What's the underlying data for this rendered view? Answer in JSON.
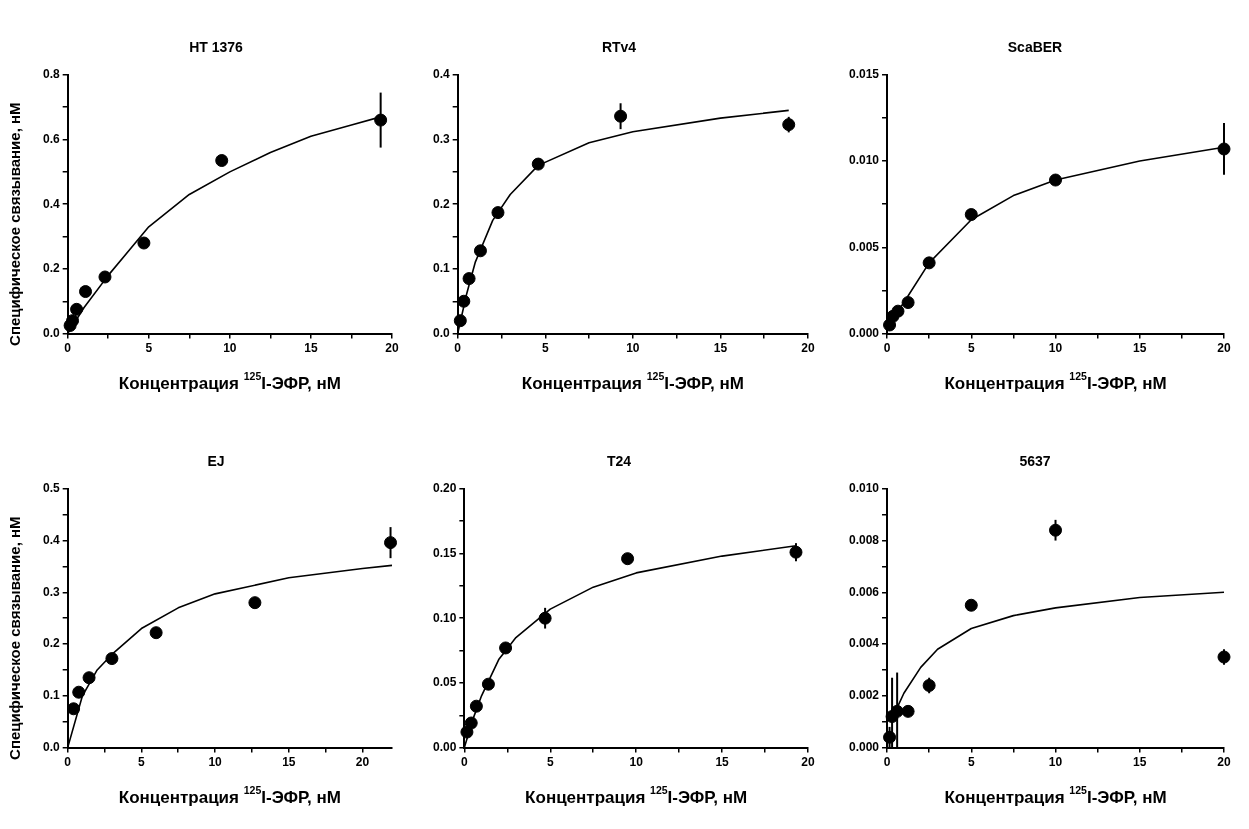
{
  "chart_data": [
    {
      "type": "scatter",
      "title": "HT 1376",
      "xlabel": "Концентрация $^{125}$I-ЭФР, нМ",
      "ylabel": "Специфическое связывание, нМ",
      "xlim": [
        0,
        20
      ],
      "ylim": [
        0,
        0.8
      ],
      "xticks": [
        0,
        {
          "value": 2.5,
          "label": null
        },
        5,
        {
          "value": 7.5,
          "label": null
        },
        10,
        {
          "value": 12.5,
          "label": null
        },
        15,
        {
          "value": 17.5,
          "label": null
        },
        20
      ],
      "yticks": [
        {
          "value": 0,
          "label": "0.0"
        },
        {
          "value": 0.1,
          "label": null
        },
        0.2,
        {
          "value": 0.3,
          "label": null
        },
        0.4,
        {
          "value": 0.5,
          "label": null
        },
        0.6,
        {
          "value": 0.7,
          "label": null
        },
        0.8
      ],
      "grid": false,
      "legend": false,
      "marker": "circle",
      "series": [
        {
          "color": "#000000",
          "x": [
            0.15,
            0.3,
            0.55,
            1.1,
            2.3,
            4.7,
            9.5,
            19.3
          ],
          "values": [
            0.025,
            0.04,
            0.075,
            0.13,
            0.175,
            0.28,
            0.535,
            0.66
          ],
          "errors": [
            null,
            null,
            null,
            null,
            null,
            null,
            null,
            0.085
          ]
        },
        {
          "type": "line",
          "color": "#000000",
          "marker": "none",
          "line_style": "solid",
          "x": [
            0,
            1,
            2.5,
            5,
            7.5,
            10,
            12.5,
            15,
            17.5,
            19.3
          ],
          "values": [
            0,
            0.08,
            0.18,
            0.33,
            0.43,
            0.5,
            0.56,
            0.61,
            0.645,
            0.67
          ]
        }
      ]
    },
    {
      "type": "scatter",
      "title": "RTv4",
      "xlabel": "Концентрация $^{125}$I-ЭФР, нМ",
      "xlim": [
        0,
        20
      ],
      "ylim": [
        0,
        0.4
      ],
      "xticks": [
        0,
        {
          "value": 2.5,
          "label": null
        },
        5,
        {
          "value": 7.5,
          "label": null
        },
        10,
        {
          "value": 12.5,
          "label": null
        },
        15,
        {
          "value": 17.5,
          "label": null
        },
        20
      ],
      "yticks": [
        {
          "value": 0,
          "label": "0.0"
        },
        {
          "value": 0.05,
          "label": null
        },
        0.1,
        {
          "value": 0.15,
          "label": null
        },
        0.2,
        {
          "value": 0.25,
          "label": null
        },
        0.3,
        {
          "value": 0.35,
          "label": null
        },
        0.4
      ],
      "grid": false,
      "legend": false,
      "marker": "circle",
      "series": [
        {
          "color": "#000000",
          "x": [
            0.15,
            0.35,
            0.65,
            1.3,
            2.3,
            4.6,
            9.3,
            18.9
          ],
          "values": [
            0.02,
            0.05,
            0.085,
            0.128,
            0.187,
            0.262,
            0.336,
            0.323
          ],
          "errors": [
            null,
            null,
            null,
            null,
            null,
            null,
            0.02,
            0.012
          ]
        },
        {
          "type": "line",
          "color": "#000000",
          "marker": "none",
          "line_style": "solid",
          "x": [
            0,
            0.5,
            1,
            2,
            3,
            4.6,
            7.5,
            10,
            15,
            18.9
          ],
          "values": [
            0,
            0.06,
            0.11,
            0.175,
            0.215,
            0.26,
            0.295,
            0.312,
            0.333,
            0.345
          ]
        }
      ]
    },
    {
      "type": "scatter",
      "title": "ScaBER",
      "xlabel": "Концентрация $^{125}$I-ЭФР, нМ",
      "xlim": [
        0,
        20
      ],
      "ylim": [
        0,
        0.015
      ],
      "xticks": [
        0,
        {
          "value": 2.5,
          "label": null
        },
        5,
        {
          "value": 7.5,
          "label": null
        },
        10,
        {
          "value": 12.5,
          "label": null
        },
        15,
        {
          "value": 17.5,
          "label": null
        },
        20
      ],
      "yticks": [
        {
          "value": 0,
          "label": "0.000"
        },
        {
          "value": 0.0025,
          "label": null
        },
        0.005,
        {
          "value": 0.0075,
          "label": null
        },
        {
          "value": 0.01,
          "label": "0.010"
        },
        {
          "value": 0.0125,
          "label": null
        },
        0.015
      ],
      "grid": false,
      "legend": false,
      "marker": "circle",
      "series": [
        {
          "color": "#000000",
          "x": [
            0.15,
            0.35,
            0.65,
            1.25,
            2.5,
            5,
            10,
            20
          ],
          "values": [
            0.0005,
            0.001,
            0.0013,
            0.0018,
            0.0041,
            0.0069,
            0.0089,
            0.0107
          ],
          "errors": [
            null,
            null,
            null,
            null,
            null,
            null,
            null,
            0.0015
          ]
        },
        {
          "type": "line",
          "color": "#000000",
          "marker": "none",
          "line_style": "solid",
          "x": [
            0.1,
            1,
            2.5,
            5,
            7.5,
            10,
            15,
            20
          ],
          "values": [
            0.0005,
            0.0018,
            0.0041,
            0.0066,
            0.008,
            0.0089,
            0.01,
            0.0108
          ]
        }
      ]
    },
    {
      "type": "scatter",
      "title": "EJ",
      "xlabel": "Концентрация $^{125}$I-ЭФР, нМ",
      "ylabel": "Специфическое связывание, нМ",
      "xlim": [
        0,
        22
      ],
      "ylim": [
        0,
        0.5
      ],
      "xticks": [
        0,
        {
          "value": 2.5,
          "label": null
        },
        5,
        {
          "value": 7.5,
          "label": null
        },
        10,
        {
          "value": 12.5,
          "label": null
        },
        15,
        {
          "value": 17.5,
          "label": null
        },
        20
      ],
      "yticks": [
        {
          "value": 0,
          "label": "0.0"
        },
        {
          "value": 0.05,
          "label": null
        },
        0.1,
        {
          "value": 0.15,
          "label": null
        },
        0.2,
        {
          "value": 0.25,
          "label": null
        },
        0.3,
        {
          "value": 0.35,
          "label": null
        },
        0.4,
        {
          "value": 0.45,
          "label": null
        },
        0.5
      ],
      "grid": false,
      "legend": false,
      "marker": "circle",
      "series": [
        {
          "color": "#000000",
          "x": [
            0.4,
            0.75,
            1.45,
            3,
            6,
            12.7,
            21.9
          ],
          "values": [
            0.075,
            0.107,
            0.135,
            0.172,
            0.222,
            0.28,
            0.396
          ],
          "errors": [
            null,
            null,
            null,
            null,
            null,
            null,
            0.03
          ]
        },
        {
          "type": "line",
          "color": "#000000",
          "marker": "none",
          "line_style": "solid",
          "x": [
            0,
            1,
            2,
            3,
            5,
            7.5,
            10,
            15,
            20,
            22
          ],
          "values": [
            0,
            0.1,
            0.15,
            0.18,
            0.23,
            0.27,
            0.297,
            0.328,
            0.346,
            0.352
          ]
        }
      ]
    },
    {
      "type": "scatter",
      "title": "T24",
      "xlabel": "Концентрация $^{125}$I-ЭФР, нМ",
      "xlim": [
        0,
        20
      ],
      "ylim": [
        0,
        0.2
      ],
      "xticks": [
        0,
        {
          "value": 2.5,
          "label": null
        },
        5,
        {
          "value": 7.5,
          "label": null
        },
        10,
        {
          "value": 12.5,
          "label": null
        },
        15,
        {
          "value": 17.5,
          "label": null
        },
        20
      ],
      "yticks": [
        {
          "value": 0,
          "label": "0.00"
        },
        {
          "value": 0.025,
          "label": null
        },
        0.05,
        {
          "value": 0.075,
          "label": null
        },
        {
          "value": 0.1,
          "label": "0.10"
        },
        {
          "value": 0.125,
          "label": null
        },
        0.15,
        {
          "value": 0.175,
          "label": null
        },
        {
          "value": 0.2,
          "label": "0.20"
        }
      ],
      "grid": false,
      "legend": false,
      "marker": "circle",
      "series": [
        {
          "color": "#000000",
          "x": [
            0.15,
            0.4,
            0.7,
            1.4,
            2.4,
            4.7,
            9.5,
            19.3
          ],
          "values": [
            0.012,
            0.019,
            0.032,
            0.049,
            0.077,
            0.1,
            0.146,
            0.151
          ],
          "errors": [
            null,
            null,
            null,
            null,
            null,
            0.008,
            null,
            0.007
          ]
        },
        {
          "type": "line",
          "color": "#000000",
          "marker": "none",
          "line_style": "solid",
          "x": [
            0,
            0.5,
            1,
            2,
            3,
            5,
            7.5,
            10,
            15,
            19.3
          ],
          "values": [
            0,
            0.022,
            0.04,
            0.068,
            0.085,
            0.107,
            0.124,
            0.135,
            0.148,
            0.156
          ]
        }
      ]
    },
    {
      "type": "scatter",
      "title": "5637",
      "xlabel": "Концентрация $^{125}$I-ЭФР, нМ",
      "xlim": [
        0,
        20
      ],
      "ylim": [
        0,
        0.01
      ],
      "xticks": [
        0,
        {
          "value": 2.5,
          "label": null
        },
        5,
        {
          "value": 7.5,
          "label": null
        },
        10,
        {
          "value": 12.5,
          "label": null
        },
        15,
        {
          "value": 17.5,
          "label": null
        },
        20
      ],
      "yticks": [
        {
          "value": 0,
          "label": "0.000"
        },
        {
          "value": 0.001,
          "label": null
        },
        0.002,
        {
          "value": 0.003,
          "label": null
        },
        0.004,
        {
          "value": 0.005,
          "label": null
        },
        0.006,
        {
          "value": 0.007,
          "label": null
        },
        0.008,
        {
          "value": 0.009,
          "label": null
        },
        {
          "value": 0.01,
          "label": "0.010"
        }
      ],
      "grid": false,
      "legend": false,
      "marker": "circle",
      "series": [
        {
          "color": "#000000",
          "x": [
            0.15,
            0.3,
            0.6,
            1.25,
            2.5,
            5,
            10,
            20
          ],
          "values": [
            0.0004,
            0.0012,
            0.0014,
            0.0014,
            0.0024,
            0.0055,
            0.0084,
            0.0035
          ],
          "errors": [
            0.0004,
            [
              0,
              0.0027
            ],
            [
              0,
              0.0029
            ],
            null,
            0.0003,
            null,
            0.0004,
            0.0003
          ]
        },
        {
          "type": "line",
          "color": "#000000",
          "marker": "none",
          "line_style": "solid",
          "x": [
            0.5,
            1,
            2,
            3,
            5,
            7.5,
            10,
            15,
            20
          ],
          "values": [
            0.0014,
            0.0021,
            0.0031,
            0.0038,
            0.0046,
            0.0051,
            0.0054,
            0.0058,
            0.006
          ]
        }
      ]
    }
  ]
}
